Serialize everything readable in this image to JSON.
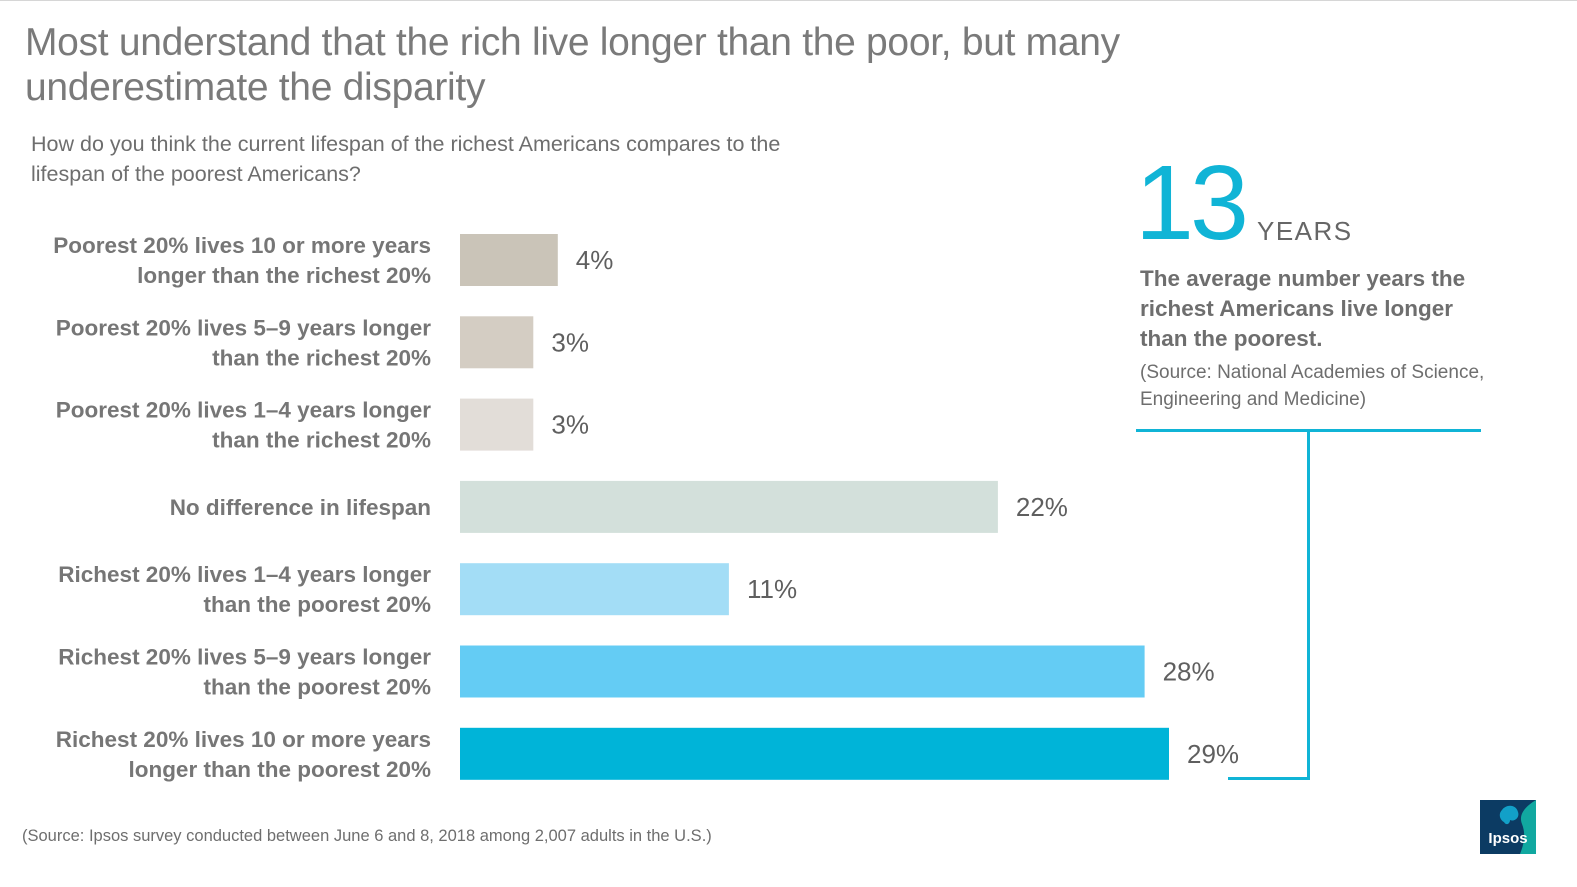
{
  "header": {
    "title": "Most understand that the rich live longer than the poor, but many underestimate the disparity",
    "question": "How do you think the current lifespan of the richest Americans compares to the lifespan of the poorest Americans?"
  },
  "chart_data": {
    "type": "bar",
    "orientation": "horizontal",
    "categories": [
      [
        "Poorest 20% lives 10 or more years",
        "longer than the richest 20%"
      ],
      [
        "Poorest 20% lives 5–9 years longer",
        "than the richest 20%"
      ],
      [
        "Poorest 20% lives 1–4 years longer",
        "than the richest 20%"
      ],
      [
        "No difference in lifespan"
      ],
      [
        "Richest 20% lives 1–4 years longer",
        "than the poorest 20%"
      ],
      [
        "Richest 20% lives 5–9 years longer",
        "than the poorest 20%"
      ],
      [
        "Richest 20% lives 10 or more years",
        "longer than the poorest 20%"
      ]
    ],
    "values": [
      4,
      3,
      3,
      22,
      11,
      28,
      29
    ],
    "value_labels": [
      "4%",
      "3%",
      "3%",
      "22%",
      "11%",
      "28%",
      "29%"
    ],
    "bar_colors": [
      "#cac4b8",
      "#d4cdc3",
      "#e2ddd8",
      "#d3e0db",
      "#a3ddf6",
      "#64ccf4",
      "#00b4d8"
    ],
    "xlim": [
      0,
      29
    ],
    "grid": false,
    "legend": "none"
  },
  "callout": {
    "number": "13",
    "unit": "YEARS",
    "description": "The average number years the richest Americans live longer than the poorest.",
    "source": "(Source: National Academies of Science, Engineering and Medicine)",
    "accent_color": "#10b4d6"
  },
  "footer": {
    "source": "(Source: Ipsos survey conducted between June 6 and 8, 2018 among 2,007 adults in the U.S.)"
  },
  "logo": {
    "text": "Ipsos",
    "icon": "ipsos-logo-icon"
  }
}
